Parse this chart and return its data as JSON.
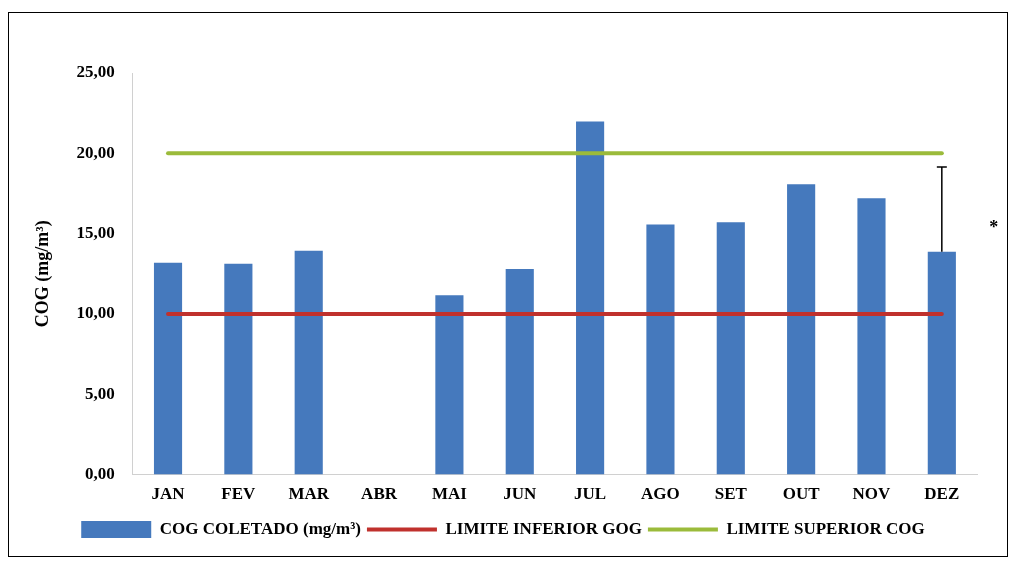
{
  "chart_data": {
    "type": "bar",
    "categories": [
      "JAN",
      "FEV",
      "MAR",
      "ABR",
      "MAI",
      "JUN",
      "JUL",
      "AGO",
      "SET",
      "OUT",
      "NOV",
      "DEZ"
    ],
    "series": [
      {
        "name": "COG COLETADO (mg/m³)",
        "color": "#4579bd",
        "values": [
          13.19,
          13.12,
          13.94,
          null,
          11.17,
          12.8,
          21.98,
          15.57,
          15.71,
          18.08,
          17.2,
          13.87
        ],
        "errors": [
          null,
          null,
          null,
          null,
          null,
          null,
          null,
          null,
          null,
          null,
          null,
          [
            13.87,
            19.15
          ]
        ]
      },
      {
        "name": "LIMITE INFERIOR GOG",
        "type": "line",
        "color": "#c0312d",
        "values": [
          10,
          10,
          10,
          10,
          10,
          10,
          10,
          10,
          10,
          10,
          10,
          10
        ]
      },
      {
        "name": "LIMITE SUPERIOR COG",
        "type": "line",
        "color": "#9bbb3b",
        "values": [
          20,
          20,
          20,
          20,
          20,
          20,
          20,
          20,
          20,
          20,
          20,
          20
        ]
      }
    ],
    "ylabel": "COG (mg/m³)",
    "ylim": [
      0,
      25
    ],
    "yticks": [
      {
        "value": 0,
        "label": "0,00"
      },
      {
        "value": 5,
        "label": "5,00"
      },
      {
        "value": 10,
        "label": "10,00"
      },
      {
        "value": 15,
        "label": "15,00"
      },
      {
        "value": 20,
        "label": "20,00"
      },
      {
        "value": 25,
        "label": "25,00"
      }
    ],
    "annotations": [
      {
        "text": "*",
        "x": "DEZ",
        "y": 15.6
      }
    ],
    "legend": "bottom",
    "grid": false
  }
}
